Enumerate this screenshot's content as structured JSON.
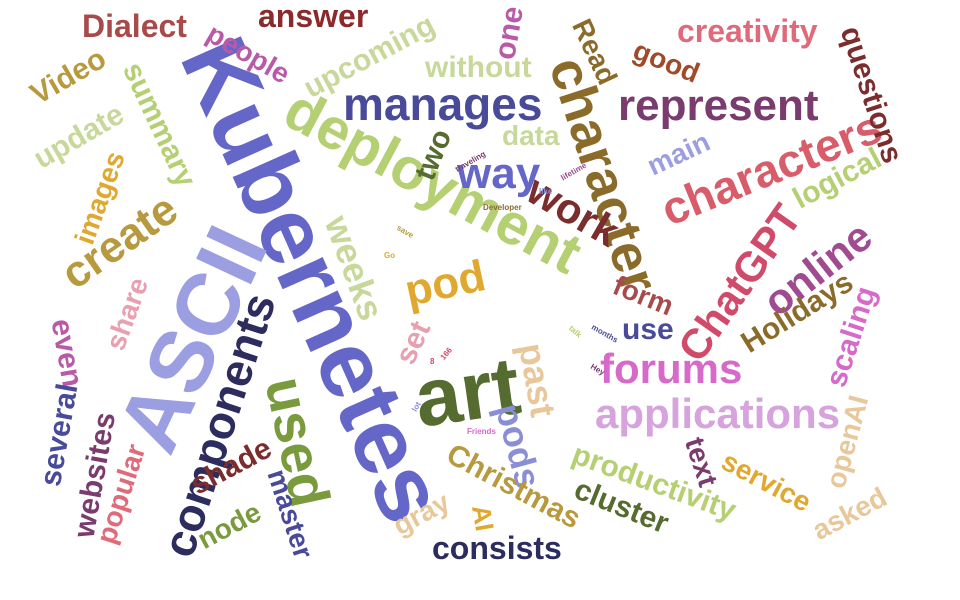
{
  "words": [
    {
      "text": "Kubernetes",
      "color": "#6466c8",
      "weight": 10
    },
    {
      "text": "ASCII",
      "color": "#9b9ee0",
      "weight": 9
    },
    {
      "text": "art",
      "color": "#556b2f",
      "weight": 9
    },
    {
      "text": "deployment",
      "color": "#b5cf73",
      "weight": 8
    },
    {
      "text": "character",
      "color": "#8b6b2a",
      "weight": 8
    },
    {
      "text": "used",
      "color": "#7a9a3e",
      "weight": 8
    },
    {
      "text": "components",
      "color": "#2c2c5e",
      "weight": 7
    },
    {
      "text": "applications",
      "color": "#d6a3dc",
      "weight": 7
    },
    {
      "text": "characters",
      "color": "#d85c6a",
      "weight": 7
    },
    {
      "text": "manages",
      "color": "#4a4a9a",
      "weight": 6
    },
    {
      "text": "represent",
      "color": "#7a3b6e",
      "weight": 6
    },
    {
      "text": "create",
      "color": "#b89a3e",
      "weight": 6
    },
    {
      "text": "forums",
      "color": "#d669c9",
      "weight": 6
    },
    {
      "text": "online",
      "color": "#a04a8f",
      "weight": 6
    },
    {
      "text": "ChatGPT",
      "color": "#d04a6a",
      "weight": 6
    },
    {
      "text": "pod",
      "color": "#e0a82e",
      "weight": 6
    },
    {
      "text": "way",
      "color": "#6466c8",
      "weight": 5
    },
    {
      "text": "work",
      "color": "#7b2d2d",
      "weight": 5
    },
    {
      "text": "weeks",
      "color": "#c8d89a",
      "weight": 5
    },
    {
      "text": "past",
      "color": "#e8c89a",
      "weight": 5
    },
    {
      "text": "pods",
      "color": "#8a8ed4",
      "weight": 5
    },
    {
      "text": "creativity",
      "color": "#e06a7a",
      "weight": 4
    },
    {
      "text": "Dialect",
      "color": "#a84a4a",
      "weight": 4
    },
    {
      "text": "answer",
      "color": "#8b2a2a",
      "weight": 4
    },
    {
      "text": "questions",
      "color": "#7b2d2d",
      "weight": 4
    },
    {
      "text": "people",
      "color": "#b85aa8",
      "weight": 4
    },
    {
      "text": "upcoming",
      "color": "#c8d89a",
      "weight": 4
    },
    {
      "text": "without",
      "color": "#c8d89a",
      "weight": 4
    },
    {
      "text": "one",
      "color": "#b85aa8",
      "weight": 4
    },
    {
      "text": "Read",
      "color": "#8b6b2a",
      "weight": 4
    },
    {
      "text": "good",
      "color": "#a04a2a",
      "weight": 4
    },
    {
      "text": "Video",
      "color": "#b89a3e",
      "weight": 4
    },
    {
      "text": "summary",
      "color": "#b5cf73",
      "weight": 4
    },
    {
      "text": "update",
      "color": "#c8d89a",
      "weight": 4
    },
    {
      "text": "images",
      "color": "#e0a82e",
      "weight": 4
    },
    {
      "text": "data",
      "color": "#c8d89a",
      "weight": 4
    },
    {
      "text": "two",
      "color": "#556b2f",
      "weight": 4
    },
    {
      "text": "main",
      "color": "#9b9ee0",
      "weight": 4
    },
    {
      "text": "logical",
      "color": "#b5cf73",
      "weight": 4
    },
    {
      "text": "Holidays",
      "color": "#8b6b2a",
      "weight": 4
    },
    {
      "text": "form",
      "color": "#a84a4a",
      "weight": 4
    },
    {
      "text": "use",
      "color": "#4a4a9a",
      "weight": 4
    },
    {
      "text": "scaling",
      "color": "#d669c9",
      "weight": 4
    },
    {
      "text": "share",
      "color": "#e8a0b0",
      "weight": 4
    },
    {
      "text": "even",
      "color": "#b85aa8",
      "weight": 4
    },
    {
      "text": "set",
      "color": "#e8a0b0",
      "weight": 4
    },
    {
      "text": "several",
      "color": "#4a4a9a",
      "weight": 4
    },
    {
      "text": "websites",
      "color": "#7a3b6e",
      "weight": 4
    },
    {
      "text": "popular",
      "color": "#e06a7a",
      "weight": 4
    },
    {
      "text": "shade",
      "color": "#7b2d2d",
      "weight": 4
    },
    {
      "text": "master",
      "color": "#4a4a9a",
      "weight": 4
    },
    {
      "text": "node",
      "color": "#7a9a3e",
      "weight": 4
    },
    {
      "text": "gray",
      "color": "#e8c89a",
      "weight": 4
    },
    {
      "text": "AI",
      "color": "#e0a82e",
      "weight": 4
    },
    {
      "text": "Christmas",
      "color": "#b89a3e",
      "weight": 4
    },
    {
      "text": "productivity",
      "color": "#b5cf73",
      "weight": 4
    },
    {
      "text": "cluster",
      "color": "#556b2f",
      "weight": 4
    },
    {
      "text": "text",
      "color": "#7a3b6e",
      "weight": 4
    },
    {
      "text": "service",
      "color": "#e0a82e",
      "weight": 4
    },
    {
      "text": "openAI",
      "color": "#e8c89a",
      "weight": 4
    },
    {
      "text": "asked",
      "color": "#e8c89a",
      "weight": 4
    },
    {
      "text": "consists",
      "color": "#2c2c5e",
      "weight": 4
    },
    {
      "text": "traveling",
      "color": "#7a3b6e",
      "weight": 1
    },
    {
      "text": "lifetime",
      "color": "#a04a8f",
      "weight": 1
    },
    {
      "text": "like",
      "color": "#8a8ed4",
      "weight": 1
    },
    {
      "text": "Developer",
      "color": "#8b6b2a",
      "weight": 1
    },
    {
      "text": "save",
      "color": "#b89a3e",
      "weight": 1
    },
    {
      "text": "Go",
      "color": "#e0a82e",
      "weight": 1
    },
    {
      "text": "talk",
      "color": "#b5cf73",
      "weight": 1
    },
    {
      "text": "months",
      "color": "#4a4a9a",
      "weight": 1
    },
    {
      "text": "Hey",
      "color": "#7a3b6e",
      "weight": 1
    },
    {
      "text": "lot",
      "color": "#8a8ed4",
      "weight": 1
    },
    {
      "text": "166",
      "color": "#d04a6a",
      "weight": 1
    },
    {
      "text": "8",
      "color": "#d04a6a",
      "weight": 1
    },
    {
      "text": "Friends",
      "color": "#d669c9",
      "weight": 1
    }
  ]
}
